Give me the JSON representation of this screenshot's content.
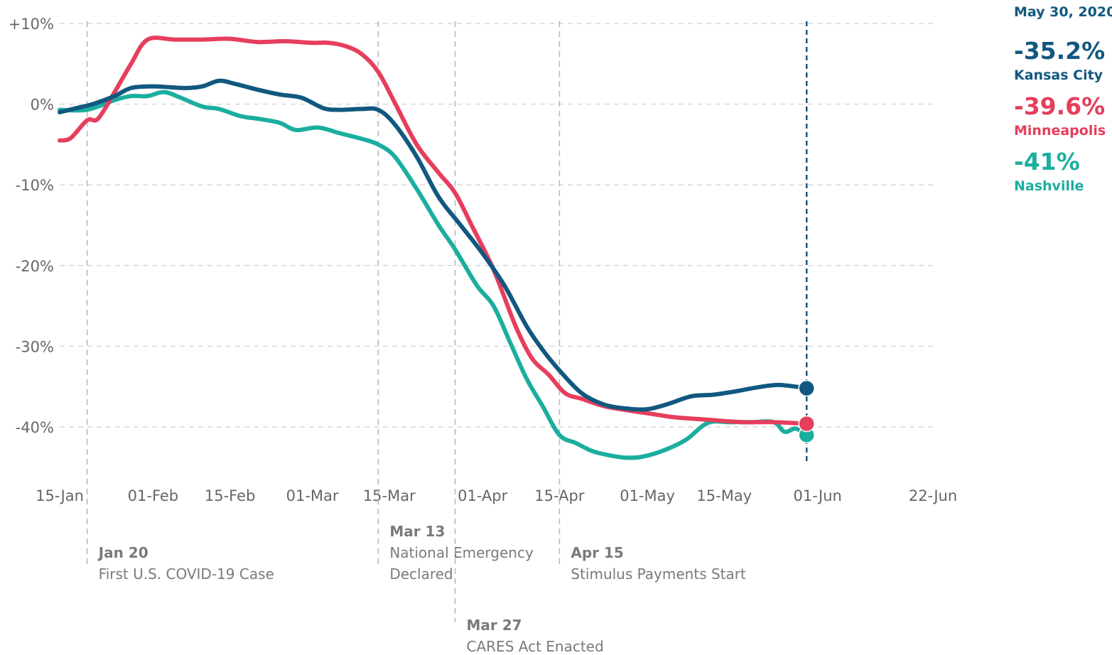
{
  "chart_data": {
    "type": "line",
    "title": "",
    "xlabel": "",
    "ylabel": "",
    "x_ticks": [
      "15-Jan",
      "01-Feb",
      "15-Feb",
      "01-Mar",
      "15-Mar",
      "01-Apr",
      "15-Apr",
      "01-May",
      "15-May",
      "01-Jun",
      "22-Jun"
    ],
    "x_tick_dates": [
      "2020-01-15",
      "2020-02-01",
      "2020-02-15",
      "2020-03-01",
      "2020-03-15",
      "2020-04-01",
      "2020-04-15",
      "2020-05-01",
      "2020-05-15",
      "2020-06-01",
      "2020-06-22"
    ],
    "y_ticks": [
      {
        "value": 10,
        "label": "+10%"
      },
      {
        "value": 0,
        "label": "0%"
      },
      {
        "value": -10,
        "label": "-10%"
      },
      {
        "value": -20,
        "label": "-20%"
      },
      {
        "value": -30,
        "label": "-30%"
      },
      {
        "value": -40,
        "label": "-40%"
      }
    ],
    "xlim": [
      "2020-01-15",
      "2020-06-22"
    ],
    "ylim": [
      -45,
      10
    ],
    "grid": true,
    "legend_position": "right",
    "focus_date": "2020-05-30",
    "events": [
      {
        "date": "2020-01-20",
        "label": "Jan 20",
        "desc": [
          "First U.S. COVID-19 Case"
        ]
      },
      {
        "date": "2020-03-13",
        "label": "Mar 13",
        "desc": [
          "National Emergency",
          "Declared"
        ]
      },
      {
        "date": "2020-03-27",
        "label": "Mar 27",
        "desc": [
          "CARES Act Enacted"
        ]
      },
      {
        "date": "2020-04-15",
        "label": "Apr 15",
        "desc": [
          "Stimulus Payments Start"
        ]
      }
    ],
    "series": [
      {
        "name": "Nashville",
        "color": "#1bae9f",
        "x": [
          "2020-01-15",
          "2020-01-20",
          "2020-01-25",
          "2020-01-28",
          "2020-01-31",
          "2020-02-03",
          "2020-02-06",
          "2020-02-10",
          "2020-02-13",
          "2020-02-17",
          "2020-02-20",
          "2020-02-24",
          "2020-02-27",
          "2020-03-02",
          "2020-03-06",
          "2020-03-10",
          "2020-03-13",
          "2020-03-16",
          "2020-03-20",
          "2020-03-24",
          "2020-03-27",
          "2020-03-31",
          "2020-04-03",
          "2020-04-06",
          "2020-04-09",
          "2020-04-12",
          "2020-04-15",
          "2020-04-18",
          "2020-04-21",
          "2020-04-24",
          "2020-04-27",
          "2020-04-30",
          "2020-05-04",
          "2020-05-08",
          "2020-05-12",
          "2020-05-16",
          "2020-05-20",
          "2020-05-24",
          "2020-05-26",
          "2020-05-28",
          "2020-05-30"
        ],
        "values": [
          -0.7,
          -0.7,
          0.5,
          1.0,
          1.0,
          1.5,
          0.8,
          -0.3,
          -0.6,
          -1.5,
          -1.8,
          -2.3,
          -3.2,
          -2.9,
          -3.6,
          -4.3,
          -5.0,
          -6.5,
          -10.5,
          -15.0,
          -18.0,
          -22.5,
          -25.0,
          -29.5,
          -34.0,
          -37.5,
          -41.0,
          -42.0,
          -43.0,
          -43.5,
          -43.8,
          -43.7,
          -42.9,
          -41.6,
          -39.5,
          -39.4,
          -39.4,
          -39.4,
          -40.6,
          -40.2,
          -41.0
        ]
      },
      {
        "name": "Minneapolis",
        "color": "#e63e5c",
        "x": [
          "2020-01-15",
          "2020-01-17",
          "2020-01-20",
          "2020-01-22",
          "2020-01-25",
          "2020-01-28",
          "2020-01-31",
          "2020-02-05",
          "2020-02-10",
          "2020-02-15",
          "2020-02-20",
          "2020-02-25",
          "2020-03-01",
          "2020-03-04",
          "2020-03-07",
          "2020-03-10",
          "2020-03-13",
          "2020-03-16",
          "2020-03-20",
          "2020-03-24",
          "2020-03-27",
          "2020-03-30",
          "2020-04-03",
          "2020-04-07",
          "2020-04-10",
          "2020-04-13",
          "2020-04-16",
          "2020-04-19",
          "2020-04-23",
          "2020-04-27",
          "2020-05-01",
          "2020-05-06",
          "2020-05-12",
          "2020-05-18",
          "2020-05-24",
          "2020-05-30"
        ],
        "values": [
          -4.5,
          -4.2,
          -2.0,
          -1.8,
          1.5,
          5.0,
          8.0,
          8.0,
          8.0,
          8.1,
          7.7,
          7.8,
          7.6,
          7.6,
          7.2,
          6.2,
          4.0,
          0.2,
          -5.0,
          -8.5,
          -11.0,
          -15.0,
          -20.5,
          -27.5,
          -31.5,
          -33.5,
          -35.8,
          -36.5,
          -37.4,
          -37.9,
          -38.3,
          -38.8,
          -39.1,
          -39.4,
          -39.4,
          -39.6
        ]
      },
      {
        "name": "Kansas City",
        "color": "#115880",
        "x": [
          "2020-01-15",
          "2020-01-18",
          "2020-01-21",
          "2020-01-25",
          "2020-01-28",
          "2020-02-01",
          "2020-02-04",
          "2020-02-07",
          "2020-02-10",
          "2020-02-13",
          "2020-02-16",
          "2020-02-20",
          "2020-02-24",
          "2020-02-28",
          "2020-03-03",
          "2020-03-06",
          "2020-03-10",
          "2020-03-13",
          "2020-03-16",
          "2020-03-20",
          "2020-03-24",
          "2020-03-28",
          "2020-04-01",
          "2020-04-05",
          "2020-04-09",
          "2020-04-12",
          "2020-04-15",
          "2020-04-19",
          "2020-04-23",
          "2020-04-27",
          "2020-05-01",
          "2020-05-05",
          "2020-05-09",
          "2020-05-13",
          "2020-05-17",
          "2020-05-21",
          "2020-05-25",
          "2020-05-30"
        ],
        "values": [
          -1.0,
          -0.5,
          0.0,
          1.0,
          2.0,
          2.2,
          2.1,
          2.0,
          2.2,
          2.9,
          2.5,
          1.8,
          1.2,
          0.8,
          -0.5,
          -0.7,
          -0.6,
          -0.7,
          -2.5,
          -6.5,
          -11.5,
          -15.0,
          -18.5,
          -22.5,
          -27.5,
          -30.5,
          -33.0,
          -35.8,
          -37.2,
          -37.7,
          -37.8,
          -37.1,
          -36.2,
          -36.0,
          -35.6,
          -35.1,
          -34.8,
          -35.2
        ]
      }
    ]
  },
  "legend": {
    "date": "May 30, 2020",
    "items": [
      {
        "value": "-35.2%",
        "name": "Kansas City",
        "color": "#115880"
      },
      {
        "value": "-39.6%",
        "name": "Minneapolis",
        "color": "#e63e5c"
      },
      {
        "value": "-41%",
        "name": "Nashville",
        "color": "#1bae9f"
      }
    ]
  }
}
